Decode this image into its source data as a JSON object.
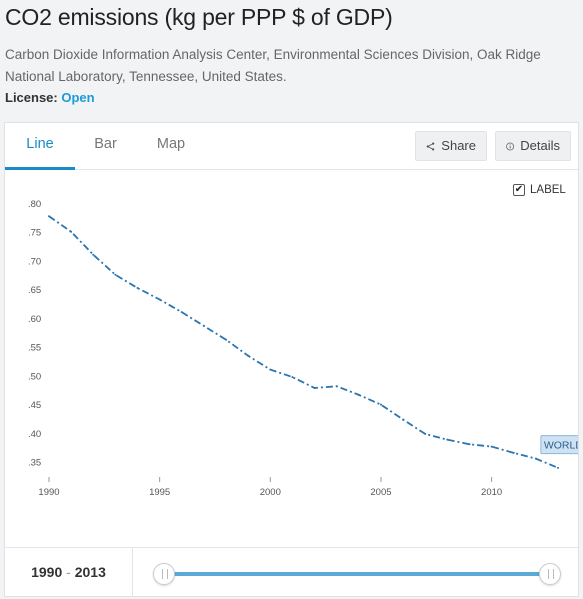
{
  "page": {
    "title": "CO2 emissions (kg per PPP $ of GDP)",
    "source": "Carbon Dioxide Information Analysis Center, Environmental Sciences Division, Oak Ridge National Laboratory, Tennessee, United States.",
    "license_label": "License:",
    "license_value": "Open"
  },
  "tabs": [
    "Line",
    "Bar",
    "Map"
  ],
  "actions": {
    "share": "Share",
    "details": "Details"
  },
  "label_toggle": {
    "label": "LABEL",
    "checked": true
  },
  "range": {
    "start": "1990",
    "sep": "-",
    "end": "2013"
  },
  "colors": {
    "series": "#2a74b0",
    "accent": "#1a8bc4",
    "slider": "#5aa9d6"
  },
  "chart_data": {
    "type": "line",
    "title": "",
    "xlabel": "",
    "ylabel": "",
    "xlim": [
      1990,
      2013
    ],
    "ylim": [
      0.33,
      0.8
    ],
    "x_ticks": [
      "1990",
      "1995",
      "2000",
      "2005",
      "2010"
    ],
    "y_ticks": [
      ".35",
      ".40",
      ".45",
      ".50",
      ".55",
      ".60",
      ".65",
      ".70",
      ".75",
      ".80"
    ],
    "grid": false,
    "series": [
      {
        "name": "WORLD",
        "style": "dash-dot",
        "x": [
          1990,
          1991,
          1992,
          1993,
          1994,
          1995,
          1996,
          1997,
          1998,
          1999,
          2000,
          2001,
          2002,
          2003,
          2004,
          2005,
          2006,
          2007,
          2008,
          2009,
          2010,
          2011,
          2012,
          2013
        ],
        "y": [
          0.777,
          0.75,
          0.71,
          0.675,
          0.652,
          0.632,
          0.61,
          0.586,
          0.562,
          0.534,
          0.51,
          0.497,
          0.478,
          0.481,
          0.466,
          0.449,
          0.423,
          0.398,
          0.388,
          0.38,
          0.376,
          0.365,
          0.355,
          0.339
        ]
      }
    ]
  }
}
